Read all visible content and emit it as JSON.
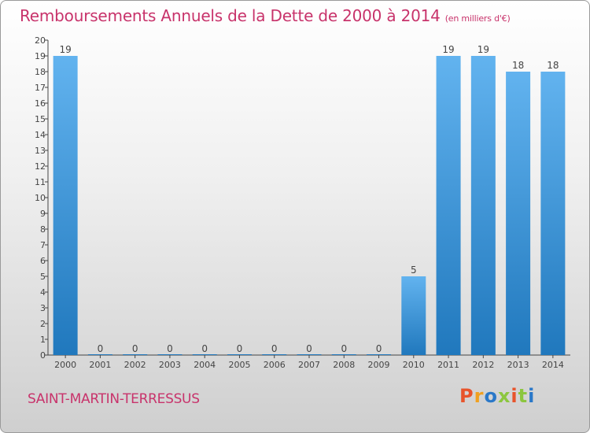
{
  "title": "Remboursements Annuels de la Dette de 2000 à 2014",
  "unit_note": "(en milliers d'€)",
  "commune": "SAINT-MARTIN-TERRESSUS",
  "logo": {
    "text": "Proxiti",
    "colors": [
      "#e8542b",
      "#f0a020",
      "#2a78c8",
      "#8cc63f",
      "#e8542b",
      "#8cc63f",
      "#2a78c8"
    ]
  },
  "colors": {
    "bar_top": "#62b3ef",
    "bar_bottom": "#2078bd",
    "title": "#c8336b",
    "axis": "#444444"
  },
  "chart_data": {
    "type": "bar",
    "title": "Remboursements Annuels de la Dette de 2000 à 2014",
    "xlabel": "",
    "ylabel": "",
    "ylim": [
      0,
      20
    ],
    "categories": [
      "2000",
      "2001",
      "2002",
      "2003",
      "2004",
      "2005",
      "2006",
      "2007",
      "2008",
      "2009",
      "2010",
      "2011",
      "2012",
      "2013",
      "2014"
    ],
    "values": [
      19,
      0,
      0,
      0,
      0,
      0,
      0,
      0,
      0,
      0,
      5,
      19,
      19,
      18,
      18
    ],
    "yticks": [
      "0",
      "1",
      "2",
      "3",
      "4",
      "5",
      "6",
      "7",
      "8",
      "9",
      "10",
      "11",
      "12",
      "13",
      "14",
      "15",
      "16",
      "17",
      "18",
      "19",
      "20"
    ],
    "grid": false,
    "legend": "none"
  }
}
